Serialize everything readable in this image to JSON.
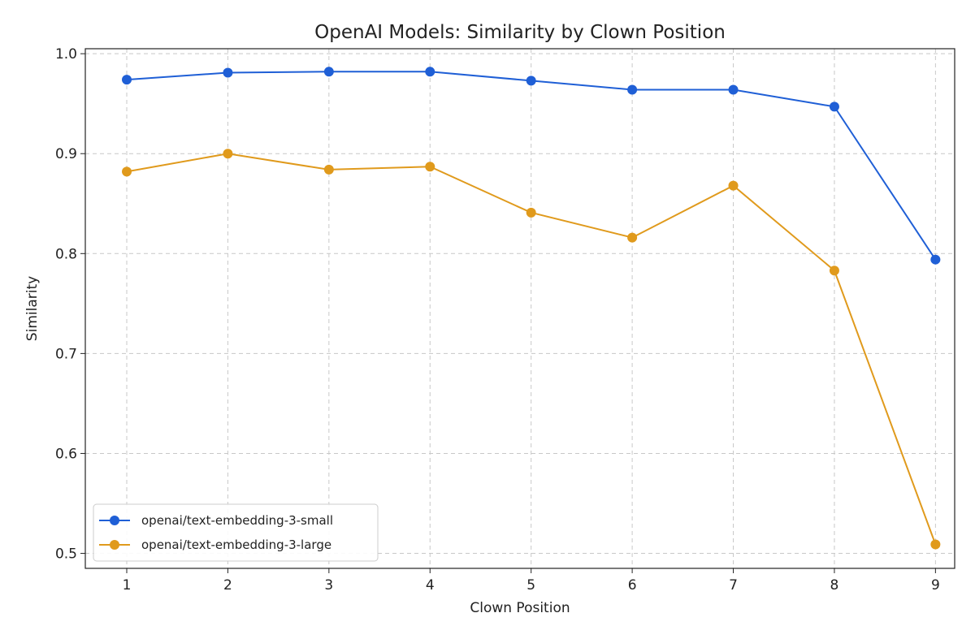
{
  "chart_data": {
    "type": "line",
    "title": "OpenAI Models: Similarity by Clown Position",
    "xlabel": "Clown Position",
    "ylabel": "Similarity",
    "x": [
      1,
      2,
      3,
      4,
      5,
      6,
      7,
      8,
      9
    ],
    "xlim": [
      0.59,
      9.19
    ],
    "ylim": [
      0.485,
      1.005
    ],
    "xticks": [
      1,
      2,
      3,
      4,
      5,
      6,
      7,
      8,
      9
    ],
    "yticks": [
      "0.5",
      "0.6",
      "0.7",
      "0.8",
      "0.9",
      "1.0"
    ],
    "grid": true,
    "legend_position": "lower-left",
    "series": [
      {
        "name": "openai/text-embedding-3-small",
        "color": "#1f5fd6",
        "values": [
          0.974,
          0.981,
          0.982,
          0.982,
          0.973,
          0.964,
          0.964,
          0.947,
          0.794
        ]
      },
      {
        "name": "openai/text-embedding-3-large",
        "color": "#e09a1c",
        "values": [
          0.882,
          0.9,
          0.884,
          0.887,
          0.841,
          0.816,
          0.868,
          0.783,
          0.509
        ]
      }
    ]
  }
}
